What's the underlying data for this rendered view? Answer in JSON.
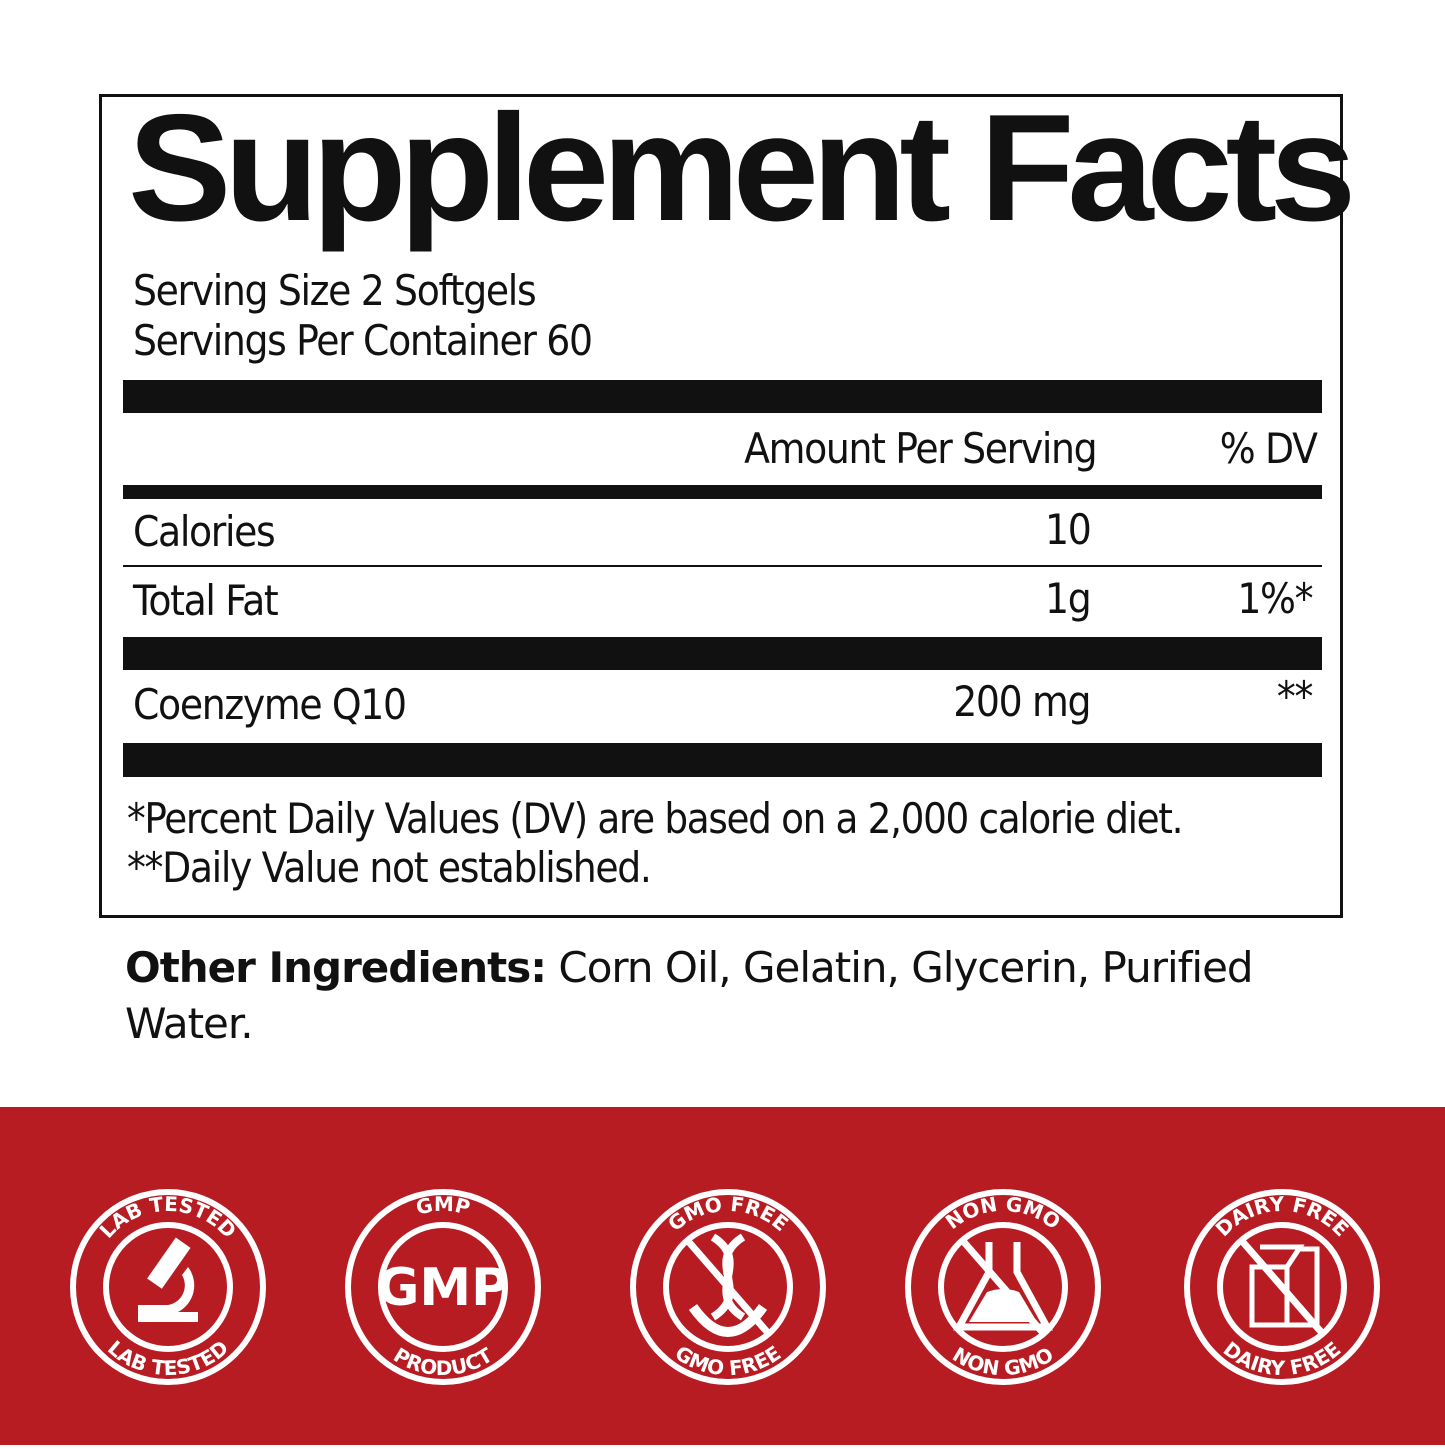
{
  "label": {
    "title": "Supplement Facts",
    "serving_size": "Serving Size 2 Softgels",
    "servings_per_container": "Servings Per Container 60",
    "header_amount": "Amount Per Serving",
    "header_dv": "% DV",
    "rows": [
      {
        "name": "Calories",
        "amount": "10",
        "dv": ""
      },
      {
        "name": "Total Fat",
        "amount": "1g",
        "dv": "1%*"
      },
      {
        "name": "Coenzyme Q10",
        "amount": "200 mg",
        "dv": "**"
      }
    ],
    "footnote_1": "*Percent Daily Values (DV) are based on a 2,000 calorie diet.",
    "footnote_2": "**Daily Value not established."
  },
  "other_ingredients": {
    "label": "Other Ingredients:",
    "text": " Corn Oil, Gelatin, Glycerin, Purified Water."
  },
  "badges": [
    {
      "icon": "microscope-icon",
      "top": "LAB TESTED",
      "bottom": "LAB TESTED"
    },
    {
      "icon": "gmp-icon",
      "top": "GMP",
      "center": "GMP",
      "bottom": "PRODUCT"
    },
    {
      "icon": "dna-crossed-icon",
      "top": "GMO FREE",
      "bottom": "GMO FREE"
    },
    {
      "icon": "flask-crossed-icon",
      "top": "NON GMO",
      "bottom": "NON GMO"
    },
    {
      "icon": "milk-carton-crossed-icon",
      "top": "DAIRY FREE",
      "bottom": "DAIRY FREE"
    }
  ],
  "colors": {
    "band": "#b71c22",
    "text": "#111111"
  }
}
